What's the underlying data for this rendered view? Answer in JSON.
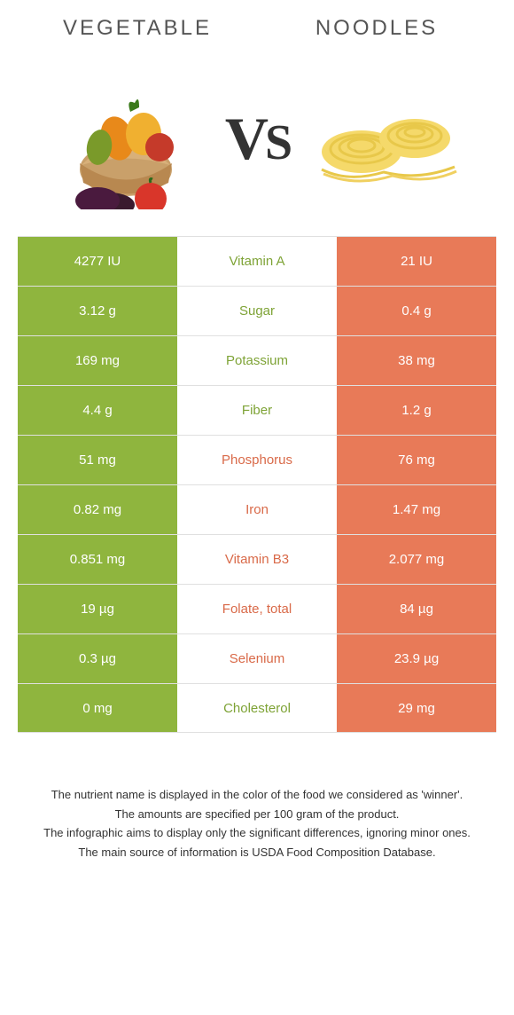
{
  "titles": {
    "left": "VEGETABLE",
    "right": "NOODLES"
  },
  "vs": "VS",
  "colors": {
    "left_cell": "#8fb53e",
    "right_cell": "#e87a58",
    "left_label": "#7ea336",
    "right_label": "#d96a49",
    "row_border": "#e0e0e0"
  },
  "table": {
    "rows": [
      {
        "left": "4277 IU",
        "mid": "Vitamin A",
        "right": "21 IU",
        "winner": "left"
      },
      {
        "left": "3.12 g",
        "mid": "Sugar",
        "right": "0.4 g",
        "winner": "left"
      },
      {
        "left": "169 mg",
        "mid": "Potassium",
        "right": "38 mg",
        "winner": "left"
      },
      {
        "left": "4.4 g",
        "mid": "Fiber",
        "right": "1.2 g",
        "winner": "left"
      },
      {
        "left": "51 mg",
        "mid": "Phosphorus",
        "right": "76 mg",
        "winner": "right"
      },
      {
        "left": "0.82 mg",
        "mid": "Iron",
        "right": "1.47 mg",
        "winner": "right"
      },
      {
        "left": "0.851 mg",
        "mid": "Vitamin B3",
        "right": "2.077 mg",
        "winner": "right"
      },
      {
        "left": "19 µg",
        "mid": "Folate, total",
        "right": "84 µg",
        "winner": "right"
      },
      {
        "left": "0.3 µg",
        "mid": "Selenium",
        "right": "23.9 µg",
        "winner": "right"
      },
      {
        "left": "0 mg",
        "mid": "Cholesterol",
        "right": "29 mg",
        "winner": "left"
      }
    ]
  },
  "notes": [
    "The nutrient name is displayed in the color of the food we considered as 'winner'.",
    "The amounts are specified per 100 gram of the product.",
    "The infographic aims to display only the significant differences, ignoring minor ones.",
    "The main source of information is USDA Food Composition Database."
  ],
  "icons": {
    "left": "vegetable-basket",
    "right": "noodle-nest"
  }
}
